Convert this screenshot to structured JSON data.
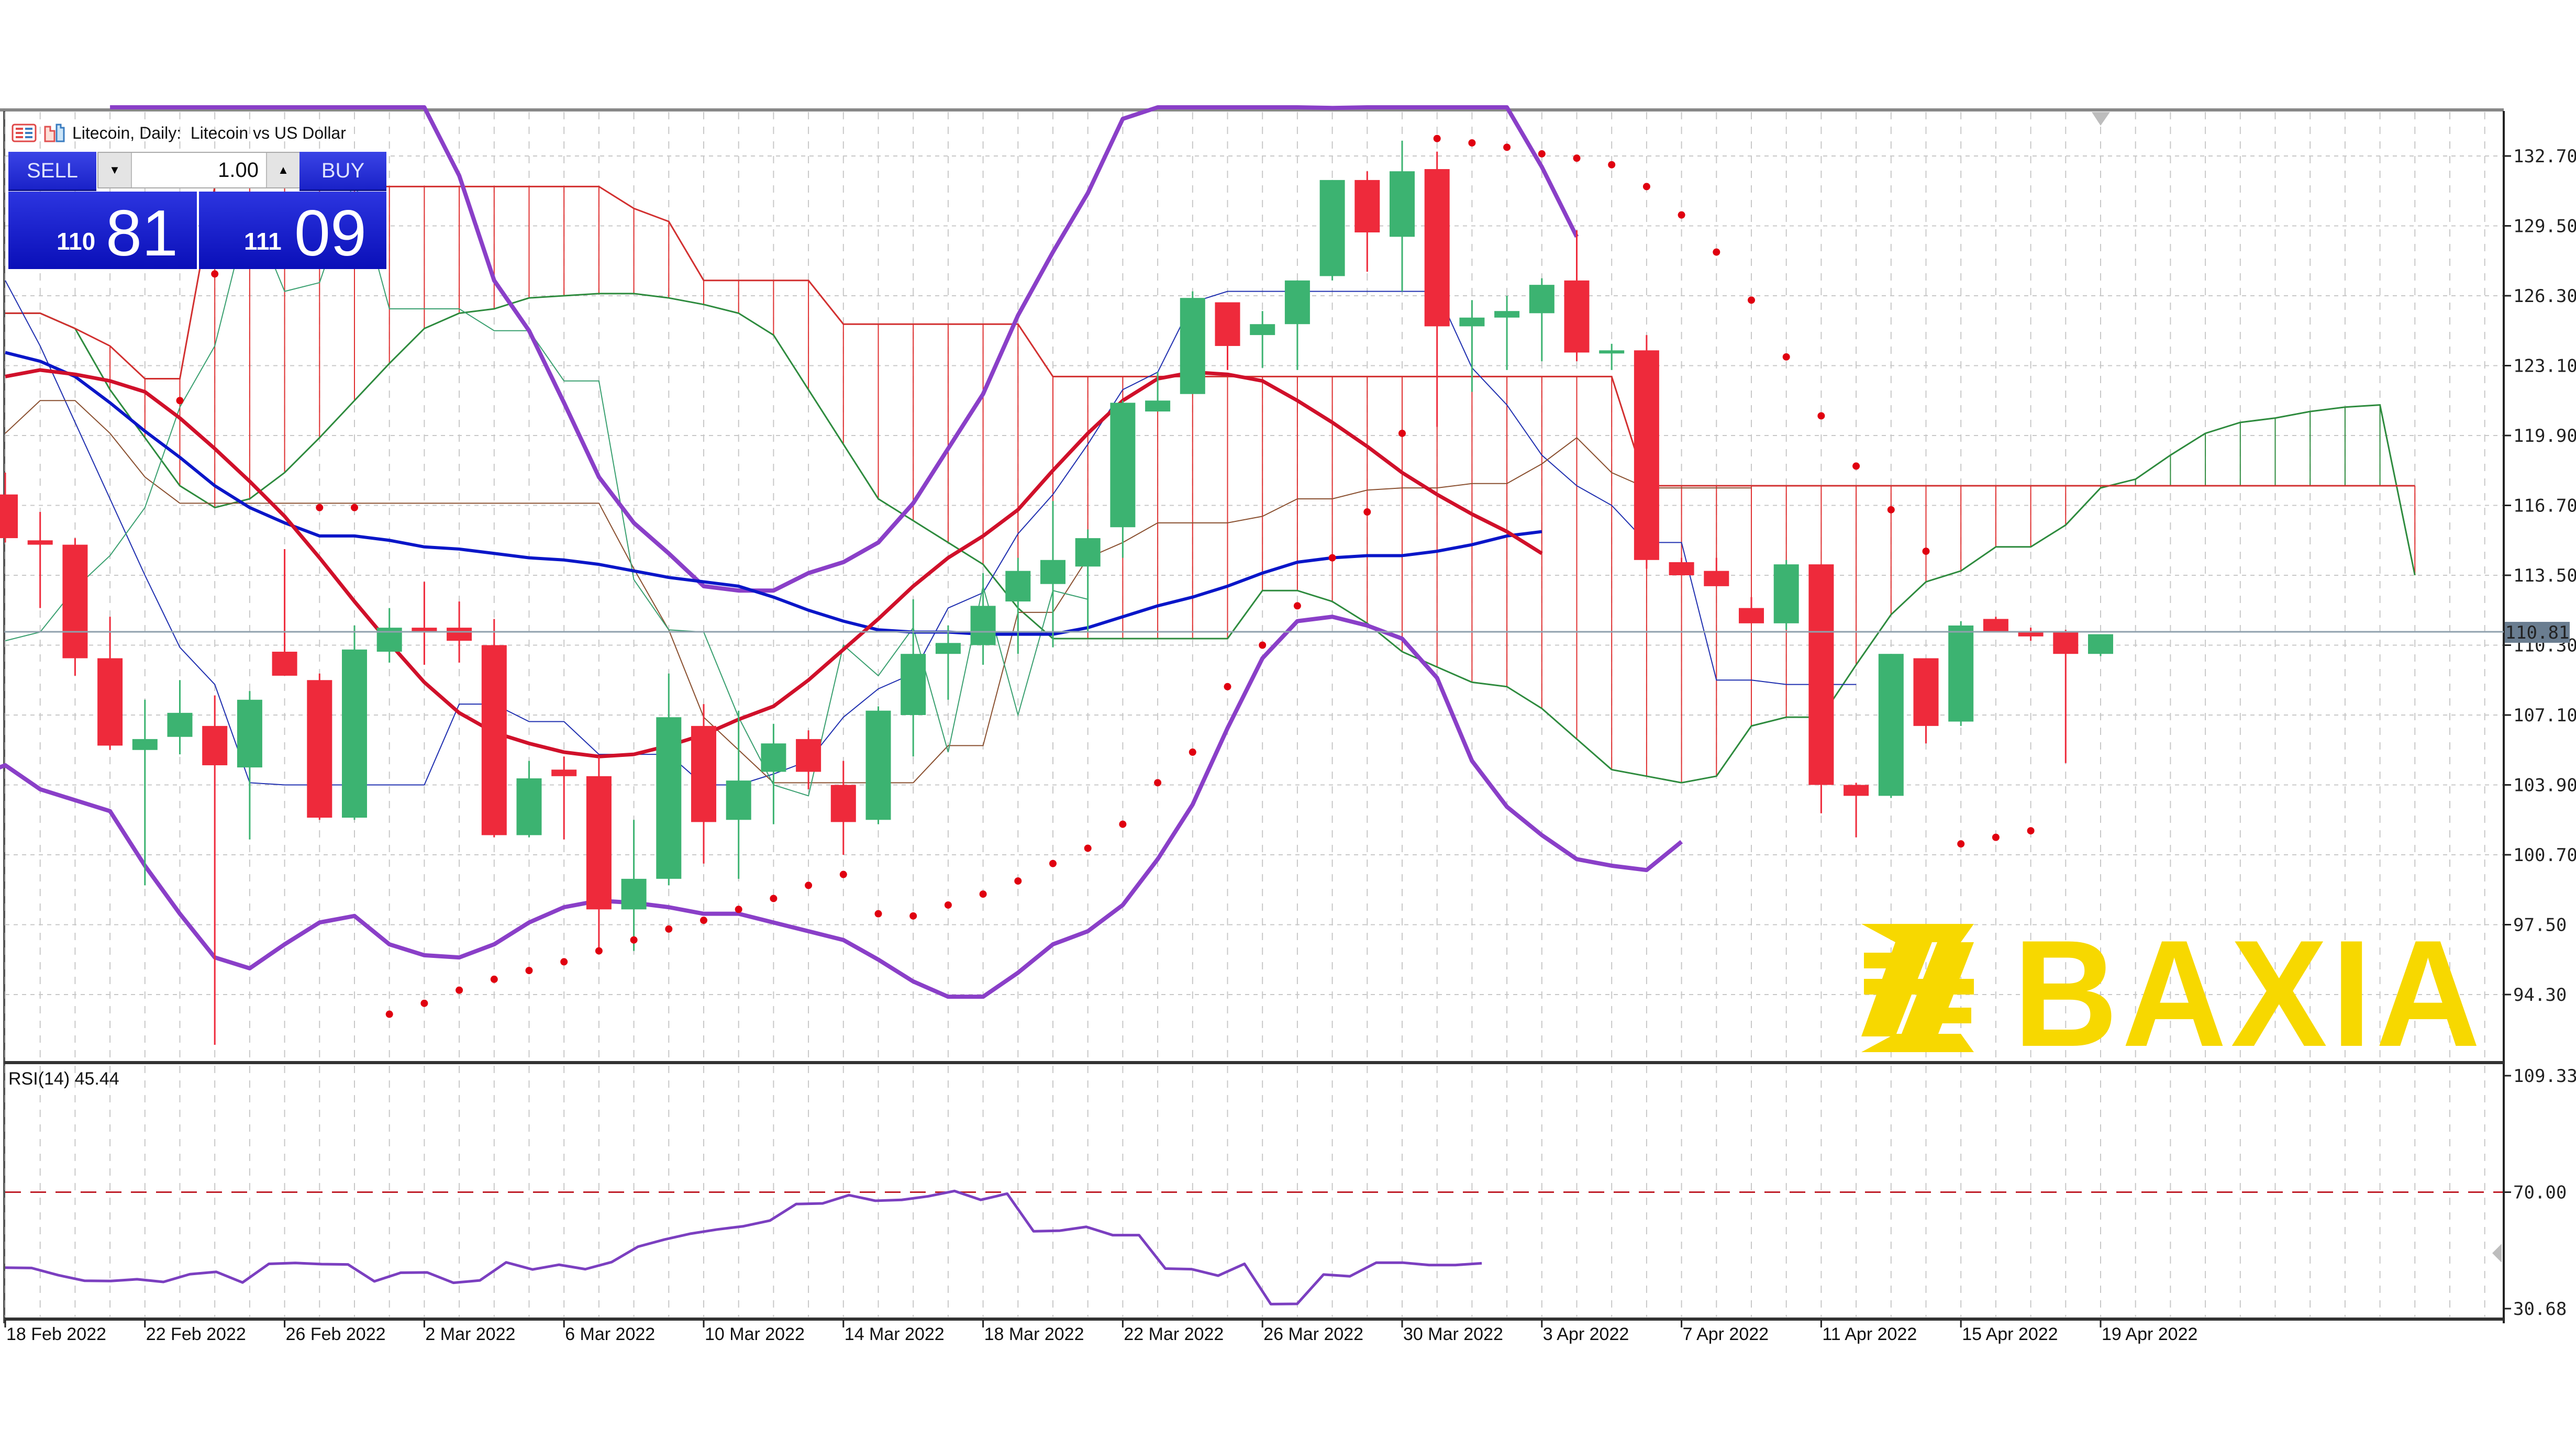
{
  "header": {
    "title": "Litecoin, Daily:  Litecoin vs US Dollar"
  },
  "trade_panel": {
    "sell_label": "SELL",
    "buy_label": "BUY",
    "lot_value": "1.00",
    "sell_price_small": "110",
    "sell_price_big": "81",
    "buy_price_small": "111",
    "buy_price_big": "09",
    "down_arrow": "▼",
    "up_arrow": "▲"
  },
  "indicators": {
    "rsi_label": "RSI(14) 45.44"
  },
  "logo": {
    "text": "BAXIA",
    "color": "#f7d800"
  },
  "colors": {
    "bull": "#3cb371",
    "bear": "#ee2a3b",
    "ma_fast": "#d0102a",
    "ma_slow": "#0a16c8",
    "bollinger": "#8a3fc8",
    "psar": "#e00010",
    "rsi": "#7b3fc0",
    "rsi_level": "#c0202a",
    "grid": "#c8c8c8",
    "current_price_tag": "#6a7d90"
  },
  "chart_data": [
    {
      "type": "candlestick",
      "title": "Litecoin, Daily: Litecoin vs US Dollar",
      "xlabel": "",
      "ylabel": "",
      "ylim": [
        92.0,
        134.5
      ],
      "y_ticks": [
        "132.70",
        "129.50",
        "126.30",
        "123.10",
        "119.90",
        "116.70",
        "113.50",
        "110.30",
        "107.10",
        "103.90",
        "100.70",
        "97.50",
        "94.30"
      ],
      "x_ticks": [
        "18 Feb 2022",
        "22 Feb 2022",
        "26 Feb 2022",
        "2 Mar 2022",
        "6 Mar 2022",
        "10 Mar 2022",
        "14 Mar 2022",
        "18 Mar 2022",
        "22 Mar 2022",
        "26 Mar 2022",
        "30 Mar 2022",
        "3 Apr 2022",
        "7 Apr 2022",
        "11 Apr 2022",
        "15 Apr 2022",
        "19 Apr 2022"
      ],
      "current_price": "110.81",
      "grid": true,
      "candles": [
        {
          "d": "17 Feb",
          "o": 117.2,
          "h": 118.2,
          "l": 115.0,
          "c": 115.2
        },
        {
          "d": "18 Feb",
          "o": 115.1,
          "h": 116.4,
          "l": 112.0,
          "c": 114.9
        },
        {
          "d": "19 Feb",
          "o": 114.9,
          "h": 115.2,
          "l": 108.9,
          "c": 109.7
        },
        {
          "d": "20 Feb",
          "o": 109.7,
          "h": 111.6,
          "l": 105.5,
          "c": 105.7
        },
        {
          "d": "21 Feb",
          "o": 105.5,
          "h": 107.8,
          "l": 99.3,
          "c": 106.0
        },
        {
          "d": "22 Feb",
          "o": 106.1,
          "h": 108.7,
          "l": 105.3,
          "c": 107.2
        },
        {
          "d": "23 Feb",
          "o": 106.6,
          "h": 108.0,
          "l": 92.0,
          "c": 104.8
        },
        {
          "d": "24 Feb",
          "o": 104.7,
          "h": 108.2,
          "l": 101.4,
          "c": 107.8
        },
        {
          "d": "25 Feb",
          "o": 110.0,
          "h": 114.7,
          "l": 108.9,
          "c": 108.9
        },
        {
          "d": "26 Feb",
          "o": 108.7,
          "h": 109.0,
          "l": 102.3,
          "c": 102.4
        },
        {
          "d": "27 Feb",
          "o": 102.4,
          "h": 111.2,
          "l": 102.3,
          "c": 110.1
        },
        {
          "d": "28 Feb",
          "o": 110.0,
          "h": 112.0,
          "l": 109.5,
          "c": 111.1
        },
        {
          "d": "1 Mar",
          "o": 111.1,
          "h": 113.2,
          "l": 109.4,
          "c": 110.9
        },
        {
          "d": "2 Mar",
          "o": 111.1,
          "h": 112.3,
          "l": 109.5,
          "c": 110.5
        },
        {
          "d": "3 Mar",
          "o": 110.3,
          "h": 111.5,
          "l": 101.5,
          "c": 101.6
        },
        {
          "d": "4 Mar",
          "o": 101.6,
          "h": 105.0,
          "l": 101.5,
          "c": 104.2
        },
        {
          "d": "5 Mar",
          "o": 104.6,
          "h": 105.2,
          "l": 101.4,
          "c": 104.3
        },
        {
          "d": "6 Mar",
          "o": 104.3,
          "h": 105.2,
          "l": 96.3,
          "c": 98.2
        },
        {
          "d": "7 Mar",
          "o": 98.2,
          "h": 102.3,
          "l": 96.3,
          "c": 99.6
        },
        {
          "d": "8 Mar",
          "o": 99.6,
          "h": 109.0,
          "l": 99.3,
          "c": 107.0
        },
        {
          "d": "9 Mar",
          "o": 106.6,
          "h": 107.6,
          "l": 100.3,
          "c": 102.2
        },
        {
          "d": "10 Mar",
          "o": 102.3,
          "h": 107.3,
          "l": 99.6,
          "c": 104.1
        },
        {
          "d": "11 Mar",
          "o": 104.5,
          "h": 106.7,
          "l": 102.1,
          "c": 105.8
        },
        {
          "d": "12 Mar",
          "o": 106.0,
          "h": 106.4,
          "l": 103.7,
          "c": 104.5
        },
        {
          "d": "13 Mar",
          "o": 103.9,
          "h": 105.0,
          "l": 100.7,
          "c": 102.2
        },
        {
          "d": "14 Mar",
          "o": 102.3,
          "h": 107.5,
          "l": 102.1,
          "c": 107.3
        },
        {
          "d": "15 Mar",
          "o": 107.1,
          "h": 112.4,
          "l": 105.2,
          "c": 109.9
        },
        {
          "d": "16 Mar",
          "o": 109.9,
          "h": 111.2,
          "l": 107.8,
          "c": 110.4
        },
        {
          "d": "17 Mar",
          "o": 110.3,
          "h": 113.6,
          "l": 109.4,
          "c": 112.1
        },
        {
          "d": "18 Mar",
          "o": 112.3,
          "h": 114.3,
          "l": 109.9,
          "c": 113.7
        },
        {
          "d": "19 Mar",
          "o": 113.1,
          "h": 116.9,
          "l": 110.2,
          "c": 114.2
        },
        {
          "d": "20 Mar",
          "o": 113.9,
          "h": 115.6,
          "l": 110.9,
          "c": 115.2
        },
        {
          "d": "21 Mar",
          "o": 115.7,
          "h": 121.5,
          "l": 114.3,
          "c": 121.4
        },
        {
          "d": "22 Mar",
          "o": 121.0,
          "h": 122.8,
          "l": 121.0,
          "c": 121.5
        },
        {
          "d": "23 Mar",
          "o": 121.8,
          "h": 126.5,
          "l": 121.8,
          "c": 126.2
        },
        {
          "d": "24 Mar",
          "o": 126.0,
          "h": 126.0,
          "l": 122.9,
          "c": 124.0
        },
        {
          "d": "25 Mar",
          "o": 124.5,
          "h": 125.6,
          "l": 123.0,
          "c": 125.0
        },
        {
          "d": "26 Mar",
          "o": 125.0,
          "h": 127.0,
          "l": 122.9,
          "c": 127.0
        },
        {
          "d": "27 Mar",
          "o": 127.2,
          "h": 131.6,
          "l": 127.0,
          "c": 131.6
        },
        {
          "d": "28 Mar",
          "o": 131.6,
          "h": 132.0,
          "l": 127.4,
          "c": 129.2
        },
        {
          "d": "29 Mar",
          "o": 129.0,
          "h": 133.4,
          "l": 126.5,
          "c": 132.0
        },
        {
          "d": "30 Mar",
          "o": 132.1,
          "h": 132.9,
          "l": 120.3,
          "c": 124.9
        },
        {
          "d": "31 Mar",
          "o": 124.9,
          "h": 126.1,
          "l": 121.9,
          "c": 125.3
        },
        {
          "d": "1 Apr",
          "o": 125.3,
          "h": 126.3,
          "l": 122.9,
          "c": 125.6
        },
        {
          "d": "2 Apr",
          "o": 125.5,
          "h": 127.1,
          "l": 123.3,
          "c": 126.8
        },
        {
          "d": "3 Apr",
          "o": 127.0,
          "h": 129.3,
          "l": 123.3,
          "c": 123.7
        },
        {
          "d": "4 Apr",
          "o": 123.7,
          "h": 124.1,
          "l": 122.9,
          "c": 123.8
        },
        {
          "d": "5 Apr",
          "o": 123.8,
          "h": 124.5,
          "l": 113.8,
          "c": 114.2
        },
        {
          "d": "6 Apr",
          "o": 114.1,
          "h": 114.3,
          "l": 113.5,
          "c": 113.5
        },
        {
          "d": "7 Apr",
          "o": 113.7,
          "h": 114.3,
          "l": 113.0,
          "c": 113.0
        },
        {
          "d": "8 Apr",
          "o": 112.0,
          "h": 112.5,
          "l": 111.3,
          "c": 111.3
        },
        {
          "d": "9 Apr",
          "o": 111.3,
          "h": 114.2,
          "l": 111.0,
          "c": 114.0
        },
        {
          "d": "10 Apr",
          "o": 114.0,
          "h": 114.0,
          "l": 102.6,
          "c": 103.9
        },
        {
          "d": "11 Apr",
          "o": 103.9,
          "h": 104.0,
          "l": 101.5,
          "c": 103.4
        },
        {
          "d": "12 Apr",
          "o": 103.4,
          "h": 109.9,
          "l": 103.3,
          "c": 109.9
        },
        {
          "d": "13 Apr",
          "o": 109.7,
          "h": 109.7,
          "l": 105.8,
          "c": 106.6
        },
        {
          "d": "14 Apr",
          "o": 106.8,
          "h": 111.4,
          "l": 106.6,
          "c": 111.2
        },
        {
          "d": "15 Apr",
          "o": 111.5,
          "h": 111.6,
          "l": 110.9,
          "c": 110.9
        },
        {
          "d": "16 Apr",
          "o": 110.9,
          "h": 111.1,
          "l": 110.5,
          "c": 110.7
        },
        {
          "d": "17 Apr",
          "o": 110.9,
          "h": 111.0,
          "l": 104.9,
          "c": 109.9
        },
        {
          "d": "18 Apr",
          "o": 109.9,
          "h": 110.8,
          "l": 109.8,
          "c": 110.8
        }
      ],
      "series": [
        {
          "name": "MA fast (red)",
          "values": [
            122.6,
            122.9,
            122.7,
            122.4,
            121.9,
            120.7,
            119.3,
            117.8,
            116.2,
            114.3,
            112.3,
            110.4,
            108.6,
            107.2,
            106.3,
            105.8,
            105.4,
            105.2,
            105.3,
            105.7,
            106.2,
            106.9,
            107.5,
            108.7,
            110.1,
            111.5,
            113.0,
            114.3,
            115.3,
            116.5,
            118.3,
            120.0,
            121.5,
            122.5,
            122.8,
            122.7,
            122.4,
            121.5,
            120.5,
            119.4,
            118.2,
            117.2,
            116.3,
            115.5,
            114.5
          ]
        },
        {
          "name": "MA slow (blue)",
          "values": [
            123.7,
            123.3,
            122.6,
            121.4,
            120.1,
            118.9,
            117.6,
            116.6,
            115.9,
            115.3,
            115.3,
            115.1,
            114.8,
            114.7,
            114.5,
            114.3,
            114.2,
            114.0,
            113.7,
            113.4,
            113.2,
            113.0,
            112.5,
            111.9,
            111.4,
            111.0,
            110.9,
            110.9,
            110.8,
            110.8,
            110.8,
            111.1,
            111.6,
            112.1,
            112.5,
            113.0,
            113.6,
            114.1,
            114.3,
            114.4,
            114.4,
            114.6,
            114.9,
            115.3,
            115.5
          ]
        },
        {
          "name": "Bollinger upper",
          "values": [
            138,
            138,
            138,
            138,
            138,
            138,
            138,
            138,
            138,
            138,
            131.8,
            127.0,
            124.7,
            121.4,
            118.0,
            115.9,
            114.5,
            113.0,
            112.8,
            112.8,
            113.6,
            114.1,
            115.0,
            116.8,
            119.3,
            121.8,
            125.4,
            128.3,
            131.0,
            134.4,
            136.3,
            136.0,
            135.5,
            135.1,
            135.0,
            134.9,
            135.6,
            135.6,
            136.0,
            136.0,
            135.9,
            132.2,
            129.0
          ]
        },
        {
          "name": "Bollinger lower",
          "values": [
            104.2,
            104.8,
            103.7,
            103.2,
            102.7,
            100.2,
            98.0,
            96.0,
            95.5,
            96.6,
            97.6,
            97.9,
            96.6,
            96.1,
            96.0,
            96.6,
            97.6,
            98.3,
            98.6,
            98.5,
            98.3,
            98.0,
            98.0,
            97.6,
            97.2,
            96.8,
            95.9,
            94.9,
            94.2,
            94.2,
            95.3,
            96.6,
            97.2,
            98.4,
            100.5,
            103.0,
            106.5,
            109.7,
            111.4,
            111.6,
            111.2,
            110.6,
            108.8,
            105.0,
            102.9,
            101.6,
            100.5,
            100.2,
            100.0,
            101.3
          ]
        },
        {
          "name": "RSI(14)",
          "values": [
            44.5,
            44.4,
            42.0,
            40.1,
            40.0,
            40.6,
            39.7,
            42.3,
            43.1,
            39.5,
            45.8,
            46.1,
            45.7,
            45.6,
            39.9,
            42.8,
            42.9,
            39.4,
            40.2,
            46.3,
            43.9,
            45.5,
            44.0,
            46.4,
            51.6,
            54.0,
            56.0,
            57.4,
            58.5,
            60.4,
            66.0,
            66.2,
            69.0,
            67.1,
            67.4,
            68.6,
            70.4,
            67.4,
            69.5,
            56.8,
            57.0,
            58.3,
            55.5,
            55.5,
            44.2,
            44.0,
            41.8,
            45.8,
            32.2,
            32.3,
            42.2,
            41.6,
            46.2,
            46.2,
            45.4,
            45.4,
            46.0
          ],
          "level": 70.0,
          "ylim": [
            30.68,
            109.33
          ]
        }
      ]
    }
  ]
}
